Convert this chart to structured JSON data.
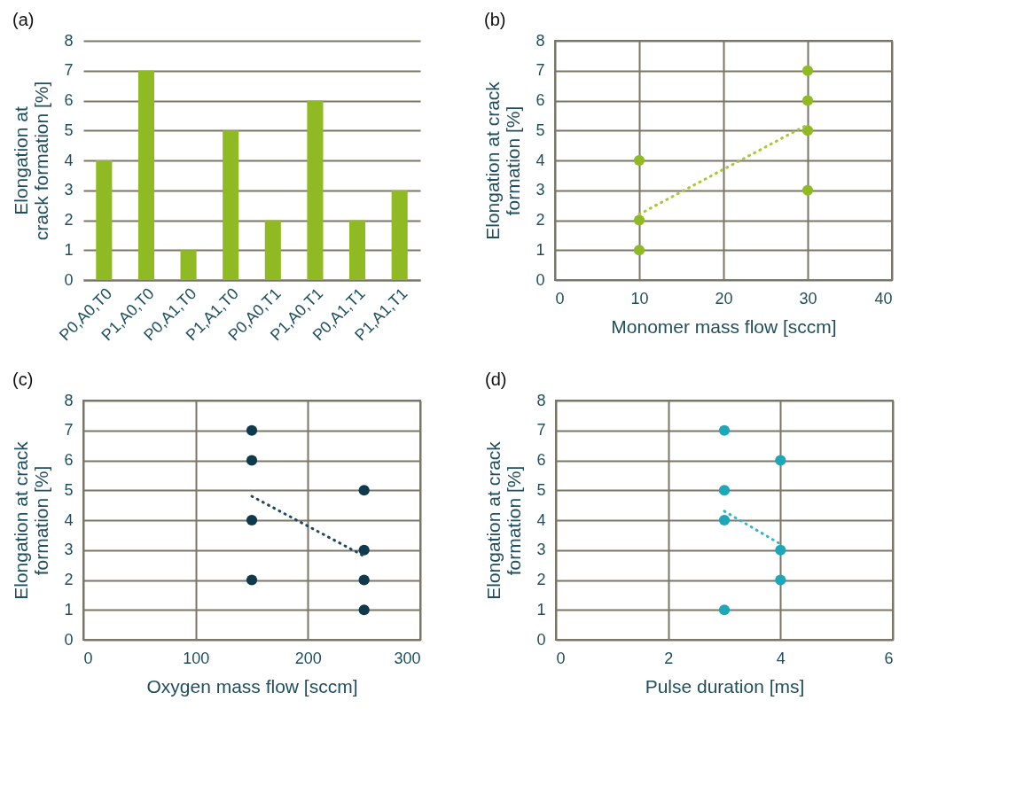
{
  "chart_data": [
    {
      "type": "bar",
      "title": "(a)",
      "ylabel": "Elongation at\ncrack formation [%]",
      "categories": [
        "P0,A0,T0",
        "P1,A0,T0",
        "P0,A1,T0",
        "P1,A1,T0",
        "P0,A0,T1",
        "P1,A0,T1",
        "P0,A1,T1",
        "P1,A1,T1"
      ],
      "values": [
        4,
        7,
        1,
        5,
        2,
        6,
        2,
        3
      ],
      "color": "#8fba24",
      "ylim": [
        0,
        8
      ],
      "yticks": [
        0,
        1,
        2,
        3,
        4,
        5,
        6,
        7,
        8
      ],
      "grid": "y"
    },
    {
      "type": "scatter",
      "title": "(b)",
      "xlabel": "Monomer mass flow [sccm]",
      "ylabel": "Elongation at crack\nformation [%]",
      "xlim": [
        0,
        40
      ],
      "xticks": [
        0,
        10,
        20,
        30,
        40
      ],
      "ylim": [
        0,
        8
      ],
      "yticks": [
        0,
        1,
        2,
        3,
        4,
        5,
        6,
        7,
        8
      ],
      "grid": true,
      "series": [
        {
          "type": "scatter",
          "marker": "circle",
          "color": "#8fba24",
          "x": [
            10,
            10,
            10,
            30,
            30,
            30,
            30
          ],
          "values": [
            1,
            2,
            4,
            3,
            5,
            6,
            7
          ]
        },
        {
          "type": "line",
          "color": "#a6c93a",
          "line_style": "dotted",
          "x": [
            10,
            30
          ],
          "values": [
            2.2,
            5.2
          ]
        }
      ]
    },
    {
      "type": "scatter",
      "title": "(c)",
      "xlabel": "Oxygen mass flow [sccm]",
      "ylabel": "Elongation at crack\nformation [%]",
      "xlim": [
        0,
        300
      ],
      "xticks": [
        0,
        100,
        200,
        300
      ],
      "ylim": [
        0,
        8
      ],
      "yticks": [
        0,
        1,
        2,
        3,
        4,
        5,
        6,
        7,
        8
      ],
      "grid": true,
      "series": [
        {
          "type": "scatter",
          "marker": "circle",
          "color": "#0f3a4e",
          "x": [
            150,
            150,
            150,
            150,
            250,
            250,
            250,
            250
          ],
          "values": [
            2,
            4,
            6,
            7,
            1,
            2,
            3,
            5
          ]
        },
        {
          "type": "line",
          "color": "#1f4a5c",
          "line_style": "dotted",
          "x": [
            150,
            250
          ],
          "values": [
            4.8,
            2.8
          ]
        }
      ]
    },
    {
      "type": "scatter",
      "title": "(d)",
      "xlabel": "Pulse duration [ms]",
      "ylabel": "Elongation at crack\nformation [%]",
      "xlim": [
        0,
        6
      ],
      "xticks": [
        0,
        2,
        4,
        6
      ],
      "ylim": [
        0,
        8
      ],
      "yticks": [
        0,
        1,
        2,
        3,
        4,
        5,
        6,
        7,
        8
      ],
      "grid": true,
      "series": [
        {
          "type": "scatter",
          "marker": "circle",
          "color": "#1ea6b9",
          "x": [
            3,
            3,
            3,
            3,
            4,
            4,
            4
          ],
          "values": [
            1,
            4,
            5,
            7,
            2,
            3,
            6
          ]
        },
        {
          "type": "line",
          "color": "#3bb3c4",
          "line_style": "dotted",
          "x": [
            3,
            4
          ],
          "values": [
            4.3,
            3.2
          ]
        }
      ]
    }
  ]
}
